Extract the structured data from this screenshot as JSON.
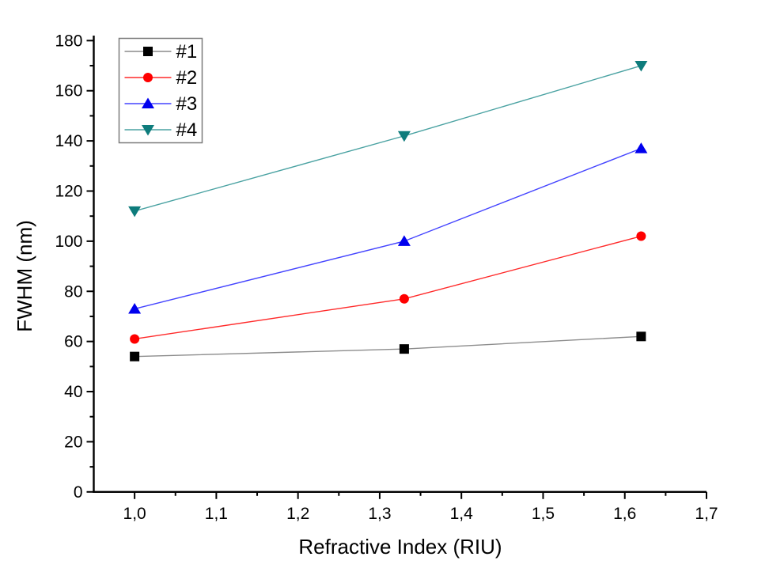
{
  "chart_data": {
    "type": "line",
    "title": "",
    "xlabel": "Refractive Index (RIU)",
    "ylabel": "FWHM (nm)",
    "x": [
      1.0,
      1.33,
      1.62
    ],
    "series": [
      {
        "name": "#1",
        "marker": "square",
        "marker_color": "#000000",
        "line_color": "#8c8c8c",
        "values": [
          54,
          57,
          62
        ]
      },
      {
        "name": "#2",
        "marker": "circle",
        "marker_color": "#ff0000",
        "line_color": "#ff2a2a",
        "values": [
          61,
          77,
          102
        ]
      },
      {
        "name": "#3",
        "marker": "triangle-up",
        "marker_color": "#0000ee",
        "line_color": "#4444ff",
        "values": [
          73,
          100,
          137
        ]
      },
      {
        "name": "#4",
        "marker": "triangle-down",
        "marker_color": "#0e7c7c",
        "line_color": "#4aa2a2",
        "values": [
          112,
          142,
          170
        ]
      }
    ],
    "xlim": [
      0.95,
      1.7
    ],
    "ylim": [
      0,
      182
    ],
    "x_ticks": [
      1.0,
      1.1,
      1.2,
      1.3,
      1.4,
      1.5,
      1.6,
      1.7
    ],
    "x_tick_labels": [
      "1,0",
      "1,1",
      "1,2",
      "1,3",
      "1,4",
      "1,5",
      "1,6",
      "1,7"
    ],
    "y_ticks": [
      0,
      20,
      40,
      60,
      80,
      100,
      120,
      140,
      160,
      180
    ],
    "y_tick_labels": [
      "0",
      "20",
      "40",
      "60",
      "80",
      "100",
      "120",
      "140",
      "160",
      "180"
    ],
    "grid": false,
    "legend_position": "top-left",
    "axis_color": "#000000",
    "background": "#ffffff",
    "legend_border_color": "#7a7a7a"
  }
}
